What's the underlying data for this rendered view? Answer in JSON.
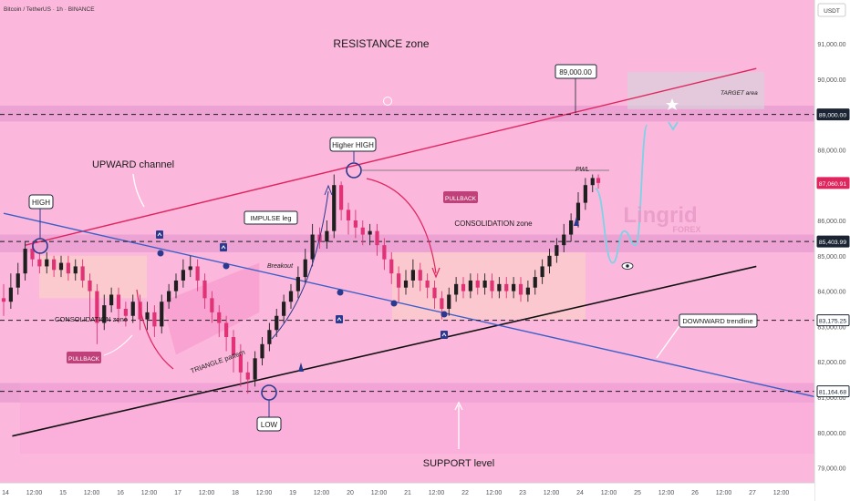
{
  "header": {
    "symbol": "Bitcoin / TetherUS · 1h · BINANCE",
    "currency": "USDT"
  },
  "colors": {
    "background": "#fcb8dc",
    "zone_band": "#e79bd0",
    "channel_line": "#e0245e",
    "trendline": "#3a5fc8",
    "support_line": "#111111",
    "candle_up": "#1f1f1f",
    "candle_down": "#e03274",
    "projection": "#7ad3e6",
    "pullback_label": "#c0407a",
    "price_tag": "#1a2433"
  },
  "chart_data": {
    "type": "candlestick",
    "title": "",
    "ylim": [
      78500,
      92000
    ],
    "y_ticks": [
      79000,
      80000,
      81000,
      82000,
      83000,
      84000,
      85000,
      86000,
      87000,
      88000,
      89000,
      90000,
      91000
    ],
    "y_tick_labels": [
      "79,000.00",
      "80,000.00",
      "81,000.00",
      "82,000.00",
      "83,000.00",
      "84,000.00",
      "85,000.00",
      "86,000.00",
      "87,000.00",
      "88,000.00",
      "89,000.00",
      "90,000.00",
      "91,000.00"
    ],
    "x_ticks": [
      "14",
      "12:00",
      "15",
      "12:00",
      "16",
      "12:00",
      "17",
      "12:00",
      "18",
      "12:00",
      "19",
      "12:00",
      "20",
      "12:00",
      "21",
      "12:00",
      "22",
      "12:00",
      "23",
      "12:00",
      "24",
      "12:00",
      "25",
      "12:00",
      "26",
      "12:00",
      "27",
      "12:00"
    ],
    "x_range": [
      0,
      28.3
    ],
    "price_levels": [
      {
        "value": 89000,
        "label": "89,000.00",
        "style": "dashed",
        "tag": "dark"
      },
      {
        "value": 87060.91,
        "label": "87,060.91",
        "style": "none",
        "tag": "red"
      },
      {
        "value": 85403.99,
        "label": "85,403.99",
        "style": "dashed",
        "tag": "dark"
      },
      {
        "value": 83175.25,
        "label": "83,175.25",
        "style": "dashed",
        "tag": "light"
      },
      {
        "value": 81164.68,
        "label": "81,164.68",
        "style": "dashed",
        "tag": "light"
      }
    ],
    "zones": [
      {
        "name": "resistance",
        "y0": 88800,
        "y1": 89250
      },
      {
        "name": "support",
        "y0": 80850,
        "y1": 81400
      },
      {
        "name": "mid",
        "y0": 85100,
        "y1": 85600
      }
    ],
    "lines": {
      "upward_channel_upper": [
        [
          0.75,
          85300
        ],
        [
          26.2,
          90300
        ]
      ],
      "upward_channel_lower": [
        [
          0.3,
          79900
        ],
        [
          26.2,
          84700
        ]
      ],
      "downward_trendline": [
        [
          0,
          86200
        ],
        [
          28.3,
          81000
        ]
      ]
    },
    "projection_path": [
      [
        20.6,
        86900
      ],
      [
        21.2,
        84800
      ],
      [
        21.6,
        85700
      ],
      [
        22.0,
        85300
      ],
      [
        22.4,
        88700
      ]
    ],
    "candles": [
      [
        0.0,
        83800,
        83700,
        84200,
        83300
      ],
      [
        0.25,
        83700,
        84100,
        84500,
        83500
      ],
      [
        0.5,
        84100,
        84500,
        84800,
        83900
      ],
      [
        0.75,
        84500,
        85200,
        85400,
        84300
      ],
      [
        1.0,
        85200,
        84900,
        85400,
        84700
      ],
      [
        1.25,
        84900,
        84700,
        85100,
        84500
      ],
      [
        1.5,
        84700,
        84900,
        85100,
        84500
      ],
      [
        1.75,
        84900,
        84600,
        85000,
        84400
      ],
      [
        2.0,
        84600,
        84800,
        85000,
        84400
      ],
      [
        2.25,
        84800,
        84500,
        85000,
        84300
      ],
      [
        2.5,
        84500,
        84700,
        84900,
        84300
      ],
      [
        2.75,
        84700,
        84300,
        84900,
        84100
      ],
      [
        3.0,
        84300,
        84000,
        84500,
        83200
      ],
      [
        3.25,
        84000,
        83100,
        84200,
        82500
      ],
      [
        3.5,
        83100,
        83600,
        83900,
        82900
      ],
      [
        3.75,
        83600,
        83900,
        84100,
        83400
      ],
      [
        4.0,
        83900,
        83500,
        84100,
        83100
      ],
      [
        4.25,
        83500,
        83300,
        83700,
        83000
      ],
      [
        4.5,
        83300,
        83700,
        83900,
        83100
      ],
      [
        4.75,
        83700,
        83200,
        83900,
        82900
      ],
      [
        5.0,
        83200,
        83400,
        83700,
        82900
      ],
      [
        5.25,
        83400,
        83000,
        83600,
        82700
      ],
      [
        5.5,
        83000,
        83700,
        83900,
        82800
      ],
      [
        5.75,
        83700,
        84000,
        84200,
        83500
      ],
      [
        6.0,
        84000,
        84300,
        84500,
        83800
      ],
      [
        6.25,
        84300,
        84600,
        84900,
        84100
      ],
      [
        6.5,
        84600,
        84700,
        85000,
        84400
      ],
      [
        6.75,
        84700,
        84300,
        84900,
        84000
      ],
      [
        7.0,
        84300,
        83800,
        84500,
        83500
      ],
      [
        7.25,
        83800,
        83400,
        84000,
        83100
      ],
      [
        7.5,
        83400,
        83100,
        83600,
        82700
      ],
      [
        7.75,
        83100,
        82700,
        83300,
        82300
      ],
      [
        8.0,
        82700,
        82200,
        82900,
        81700
      ],
      [
        8.25,
        82200,
        81700,
        82500,
        81300
      ],
      [
        8.5,
        81700,
        81500,
        82000,
        81100
      ],
      [
        8.75,
        81500,
        82100,
        82300,
        81300
      ],
      [
        9.0,
        82100,
        82500,
        82700,
        81900
      ],
      [
        9.25,
        82500,
        82900,
        83100,
        82300
      ],
      [
        9.5,
        82900,
        83300,
        83500,
        82700
      ],
      [
        9.75,
        83300,
        83700,
        83900,
        83100
      ],
      [
        10.0,
        83700,
        84000,
        84200,
        83500
      ],
      [
        10.25,
        84000,
        84400,
        84700,
        83800
      ],
      [
        10.5,
        84400,
        84900,
        85200,
        84200
      ],
      [
        10.75,
        84900,
        85600,
        85900,
        84700
      ],
      [
        11.0,
        85600,
        85400,
        85800,
        85200
      ],
      [
        11.25,
        85400,
        85700,
        86000,
        85200
      ],
      [
        11.5,
        85700,
        87000,
        87300,
        85500
      ],
      [
        11.75,
        87000,
        86300,
        87100,
        86000
      ],
      [
        12.0,
        86300,
        86000,
        86500,
        85600
      ],
      [
        12.25,
        86000,
        85800,
        86300,
        85500
      ],
      [
        12.5,
        85800,
        85600,
        86000,
        85300
      ],
      [
        12.75,
        85600,
        85700,
        85900,
        85300
      ],
      [
        13.0,
        85700,
        85300,
        85900,
        85000
      ],
      [
        13.25,
        85300,
        84900,
        85500,
        84600
      ],
      [
        13.5,
        84900,
        84500,
        85100,
        84200
      ],
      [
        13.75,
        84500,
        84100,
        84700,
        83700
      ],
      [
        14.0,
        84100,
        84300,
        84600,
        83900
      ],
      [
        14.25,
        84300,
        84600,
        84900,
        84100
      ],
      [
        14.5,
        84600,
        84300,
        84800,
        84000
      ],
      [
        14.75,
        84300,
        84100,
        84500,
        83800
      ],
      [
        15.0,
        84100,
        83800,
        84300,
        83500
      ],
      [
        15.25,
        83800,
        83500,
        84000,
        83200
      ],
      [
        15.5,
        83500,
        83900,
        84100,
        83300
      ],
      [
        15.75,
        83900,
        84200,
        84400,
        83700
      ],
      [
        16.0,
        84200,
        84000,
        84400,
        83800
      ],
      [
        16.25,
        84000,
        84300,
        84500,
        83800
      ],
      [
        16.5,
        84300,
        84100,
        84500,
        83900
      ],
      [
        16.75,
        84100,
        84300,
        84500,
        83900
      ],
      [
        17.0,
        84300,
        84000,
        84500,
        83800
      ],
      [
        17.25,
        84000,
        84200,
        84400,
        83800
      ],
      [
        17.5,
        84200,
        84000,
        84400,
        83800
      ],
      [
        17.75,
        84000,
        84200,
        84400,
        83800
      ],
      [
        18.0,
        84200,
        83900,
        84400,
        83700
      ],
      [
        18.25,
        83900,
        84100,
        84300,
        83700
      ],
      [
        18.5,
        84100,
        84400,
        84600,
        83900
      ],
      [
        18.75,
        84400,
        84700,
        84900,
        84200
      ],
      [
        19.0,
        84700,
        85000,
        85200,
        84500
      ],
      [
        19.25,
        85000,
        85300,
        85500,
        84800
      ],
      [
        19.5,
        85300,
        85600,
        85900,
        85100
      ],
      [
        19.75,
        85600,
        86000,
        86200,
        85400
      ],
      [
        20.0,
        86000,
        86500,
        86800,
        85800
      ],
      [
        20.25,
        86500,
        87000,
        87200,
        86300
      ],
      [
        20.5,
        87000,
        87200,
        87300,
        86800
      ],
      [
        20.7,
        87200,
        87060.91,
        87300,
        86900
      ]
    ],
    "annotations": [
      {
        "id": "resistance",
        "text": "RESISTANCE zone"
      },
      {
        "id": "upward",
        "text": "UPWARD channel"
      },
      {
        "id": "high",
        "text": "HIGH"
      },
      {
        "id": "higher_high",
        "text": "Higher HIGH"
      },
      {
        "id": "pwl",
        "text": "PWL"
      },
      {
        "id": "target",
        "text": "TARGET area"
      },
      {
        "id": "p89",
        "text": "89,000.00"
      },
      {
        "id": "impulse",
        "text": "IMPULSE leg"
      },
      {
        "id": "breakout",
        "text": "Breakout"
      },
      {
        "id": "consolidation_right",
        "text": "CONSOLIDATION zone"
      },
      {
        "id": "consolidation_left",
        "text": "CONSOLIDATION zone"
      },
      {
        "id": "triangle",
        "text": "TRIANGLE pattern"
      },
      {
        "id": "pullback_left",
        "text": "PULLBACK"
      },
      {
        "id": "pullback_right",
        "text": "PULLBACK"
      },
      {
        "id": "downward",
        "text": "DOWNWARD trendline"
      },
      {
        "id": "low",
        "text": "LOW"
      },
      {
        "id": "support",
        "text": "SUPPORT level"
      }
    ]
  },
  "logo": {
    "line1": "Lingrid",
    "line2": "FOREX"
  }
}
